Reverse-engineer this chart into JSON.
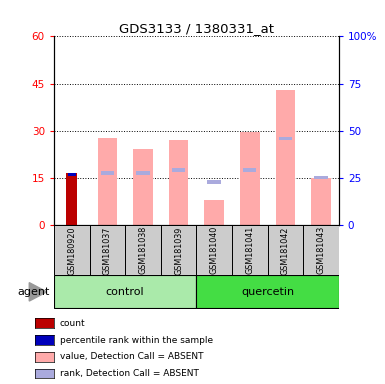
{
  "title": "GDS3133 / 1380331_at",
  "samples": [
    "GSM180920",
    "GSM181037",
    "GSM181038",
    "GSM181039",
    "GSM181040",
    "GSM181041",
    "GSM181042",
    "GSM181043"
  ],
  "value_absent": [
    null,
    27.5,
    24.0,
    27.0,
    8.0,
    29.5,
    43.0,
    15.0
  ],
  "rank_absent_pct": [
    null,
    27.0,
    27.0,
    29.0,
    23.0,
    29.0,
    47.0,
    null
  ],
  "rank_absent_shown_at": [
    null,
    16.5,
    16.5,
    17.5,
    13.5,
    17.5,
    27.5,
    15.0
  ],
  "count_present": [
    16.5,
    null,
    null,
    null,
    null,
    null,
    null,
    null
  ],
  "percentile_present": [
    16.0,
    null,
    null,
    null,
    null,
    null,
    null,
    null
  ],
  "ylim_left": [
    0,
    60
  ],
  "ylim_right": [
    0,
    100
  ],
  "yticks_left": [
    0,
    15,
    30,
    45,
    60
  ],
  "yticks_right": [
    0,
    25,
    50,
    75,
    100
  ],
  "yticklabels_right": [
    "0",
    "25",
    "50",
    "75",
    "100%"
  ],
  "color_count": "#bb0000",
  "color_percentile": "#0000bb",
  "color_value_absent": "#ffaaaa",
  "color_rank_absent": "#aaaadd",
  "color_control_bg": "#aaeaaa",
  "color_quercetin_bg": "#44dd44",
  "legend_items": [
    "count",
    "percentile rank within the sample",
    "value, Detection Call = ABSENT",
    "rank, Detection Call = ABSENT"
  ],
  "legend_colors": [
    "#bb0000",
    "#0000bb",
    "#ffaaaa",
    "#aaaadd"
  ],
  "bar_width": 0.25
}
